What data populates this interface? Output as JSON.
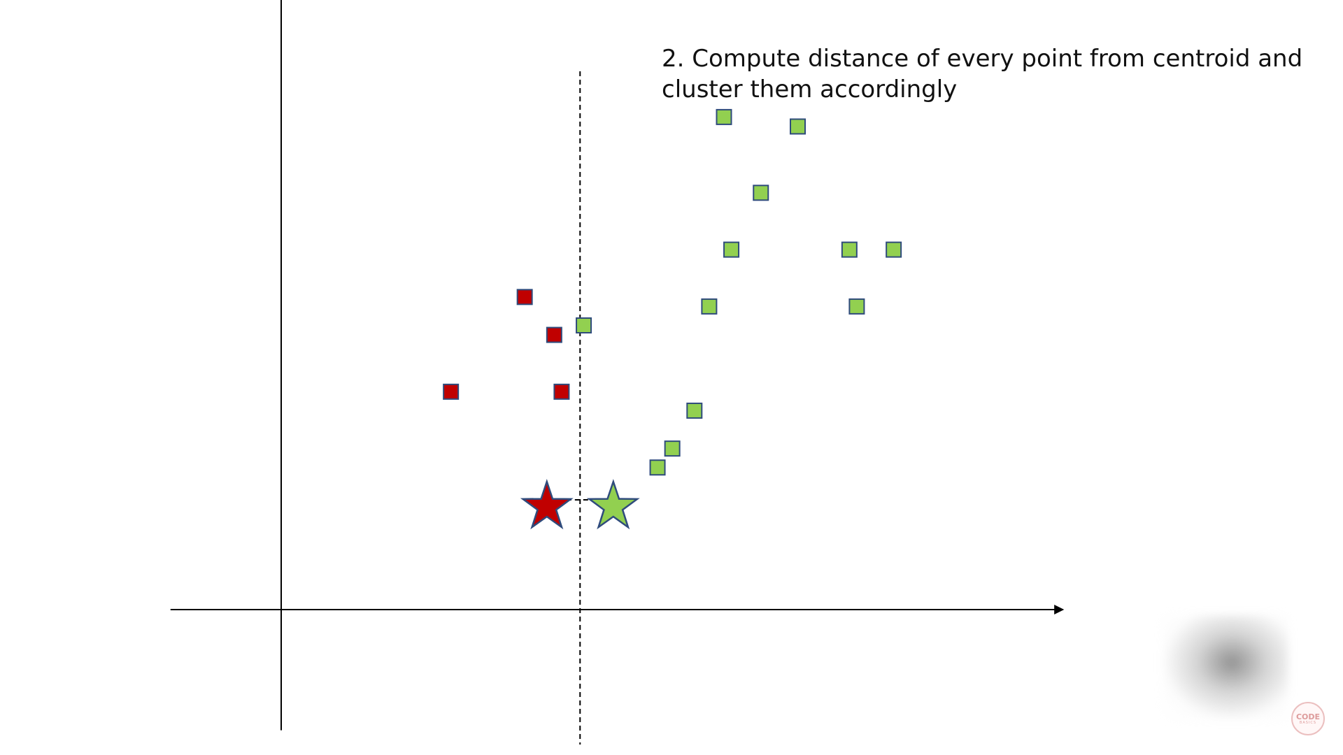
{
  "caption": {
    "line1": "2. Compute distance of every point from centroid and",
    "line2": "cluster them accordingly"
  },
  "colors": {
    "red_cluster": "#c00000",
    "green_cluster": "#92d050",
    "marker_stroke": "#2f4b7c",
    "axis": "#000000"
  },
  "chart_data": {
    "type": "scatter",
    "title": "",
    "xlabel": "",
    "ylabel": "",
    "xlim": [
      -1.5,
      10.5
    ],
    "ylim": [
      -1.2,
      6.5
    ],
    "grid": false,
    "series": [
      {
        "cluster": "red",
        "marker": "square",
        "points": [
          [
            2.3,
            2.3
          ],
          [
            3.3,
            3.3
          ],
          [
            3.7,
            2.9
          ],
          [
            3.8,
            2.3
          ]
        ]
      },
      {
        "cluster": "green",
        "marker": "square",
        "points": [
          [
            4.1,
            3.0
          ],
          [
            5.1,
            1.5
          ],
          [
            5.3,
            1.7
          ],
          [
            5.6,
            2.1
          ],
          [
            5.8,
            3.2
          ],
          [
            6.0,
            5.2
          ],
          [
            6.1,
            3.8
          ],
          [
            6.5,
            4.4
          ],
          [
            7.0,
            5.1
          ],
          [
            7.7,
            3.8
          ],
          [
            7.8,
            3.2
          ],
          [
            8.3,
            3.8
          ]
        ]
      }
    ],
    "centroids": [
      {
        "cluster": "red",
        "marker": "star",
        "x": 3.6,
        "y": 1.1
      },
      {
        "cluster": "green",
        "marker": "star",
        "x": 4.5,
        "y": 1.1
      }
    ],
    "boundary_x": 4.05
  },
  "logo": {
    "line1": "CODE",
    "line2": "BASICS"
  }
}
